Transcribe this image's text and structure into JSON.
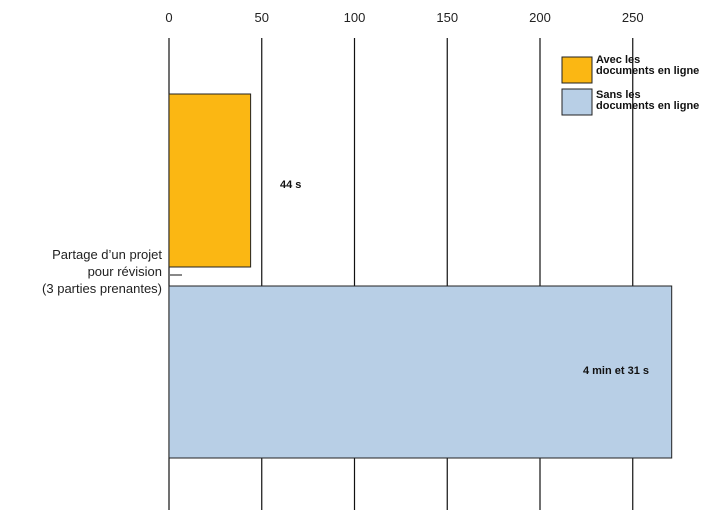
{
  "chart_data": {
    "type": "bar",
    "orientation": "horizontal",
    "categories": [
      "Partage d’un projet\npour révision\n(3 parties prenantes)"
    ],
    "series": [
      {
        "name": "Avec les\ndocuments en ligne",
        "values": [
          44
        ],
        "value_label": "44 s",
        "color": "#FBB713"
      },
      {
        "name": "Sans les\ndocuments en ligne",
        "values": [
          271
        ],
        "value_label": "4 min et 31 s",
        "color": "#B8CFE6"
      }
    ],
    "xlim": [
      0,
      270
    ],
    "xticks": [
      0,
      50,
      100,
      150,
      200,
      250
    ],
    "grid": true,
    "legend_position": "top-right",
    "title": "",
    "xlabel": "",
    "ylabel": ""
  }
}
